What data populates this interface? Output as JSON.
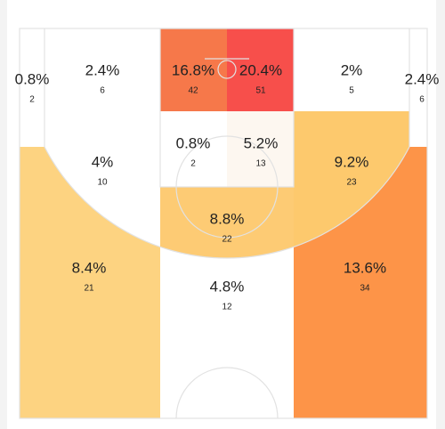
{
  "chart_data": {
    "type": "court",
    "zones": [
      {
        "label": "0.8%",
        "value": 0.8,
        "count": 2,
        "color": "#ffffff"
      },
      {
        "label": "2.4%",
        "value": 2.4,
        "count": 6,
        "color": "#ffffff"
      },
      {
        "label": "16.8%",
        "value": 16.8,
        "count": 42,
        "color": "#f6784a"
      },
      {
        "label": "20.4%",
        "value": 20.4,
        "count": 51,
        "color": "#f74f4b"
      },
      {
        "label": "2%",
        "value": 2,
        "count": 5,
        "color": "#ffffff"
      },
      {
        "label": "2.4%",
        "value": 2.4,
        "count": 6,
        "color": "#ffffff"
      },
      {
        "label": "4%",
        "value": 4,
        "count": 10,
        "color": "#ffffff"
      },
      {
        "label": "0.8%",
        "value": 0.8,
        "count": 2,
        "color": "#ffffff"
      },
      {
        "label": "5.2%",
        "value": 5.2,
        "count": 13,
        "color": "#fdf7f0"
      },
      {
        "label": "9.2%",
        "value": 9.2,
        "count": 23,
        "color": "#fdc96d"
      },
      {
        "label": "8.8%",
        "value": 8.8,
        "count": 22,
        "color": "#fdcb74"
      },
      {
        "label": "8.4%",
        "value": 8.4,
        "count": 21,
        "color": "#fdd381"
      },
      {
        "label": "13.6%",
        "value": 13.6,
        "count": 34,
        "color": "#fd9448"
      },
      {
        "label": "4.8%",
        "value": 4.8,
        "count": 12,
        "color": "#ffffff"
      }
    ]
  }
}
